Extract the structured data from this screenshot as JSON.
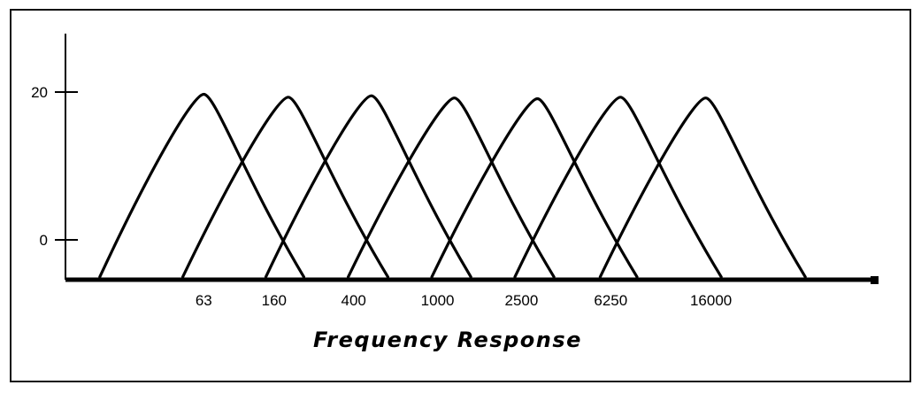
{
  "chart_data": {
    "type": "line",
    "title": "Frequency Response",
    "xlabel": "",
    "ylabel": "",
    "x_scale": "log",
    "categories": [
      "63",
      "160",
      "400",
      "1000",
      "2500",
      "6250",
      "16000"
    ],
    "center_frequencies": [
      63,
      160,
      400,
      1000,
      2500,
      6250,
      16000
    ],
    "y_ticks": [
      0,
      20
    ],
    "y_tick_labels": [
      "0",
      "20"
    ],
    "ylim": [
      -5,
      28
    ],
    "grid": false,
    "legend": "none",
    "series": [
      {
        "center": 63,
        "peak": 19.7,
        "x": [
          20,
          63,
          190
        ],
        "y": [
          -5,
          19.7,
          -5
        ]
      },
      {
        "center": 160,
        "peak": 19.3,
        "x": [
          50,
          160,
          480
        ],
        "y": [
          -5,
          19.3,
          -5
        ]
      },
      {
        "center": 400,
        "peak": 19.5,
        "x": [
          125,
          400,
          1200
        ],
        "y": [
          -5,
          19.5,
          -5
        ]
      },
      {
        "center": 1000,
        "peak": 19.2,
        "x": [
          310,
          1000,
          3000
        ],
        "y": [
          -5,
          19.2,
          -5
        ]
      },
      {
        "center": 2500,
        "peak": 19.1,
        "x": [
          780,
          2500,
          7500
        ],
        "y": [
          -5,
          19.1,
          -5
        ]
      },
      {
        "center": 6250,
        "peak": 19.3,
        "x": [
          1950,
          6250,
          19000
        ],
        "y": [
          -5,
          19.3,
          -5
        ]
      },
      {
        "center": 16000,
        "peak": 19.2,
        "x": [
          5000,
          16000,
          48000
        ],
        "y": [
          -5,
          19.2,
          -5
        ]
      }
    ],
    "colors": {
      "line": "#000000",
      "axis": "#000000",
      "frame": "#111111"
    }
  }
}
